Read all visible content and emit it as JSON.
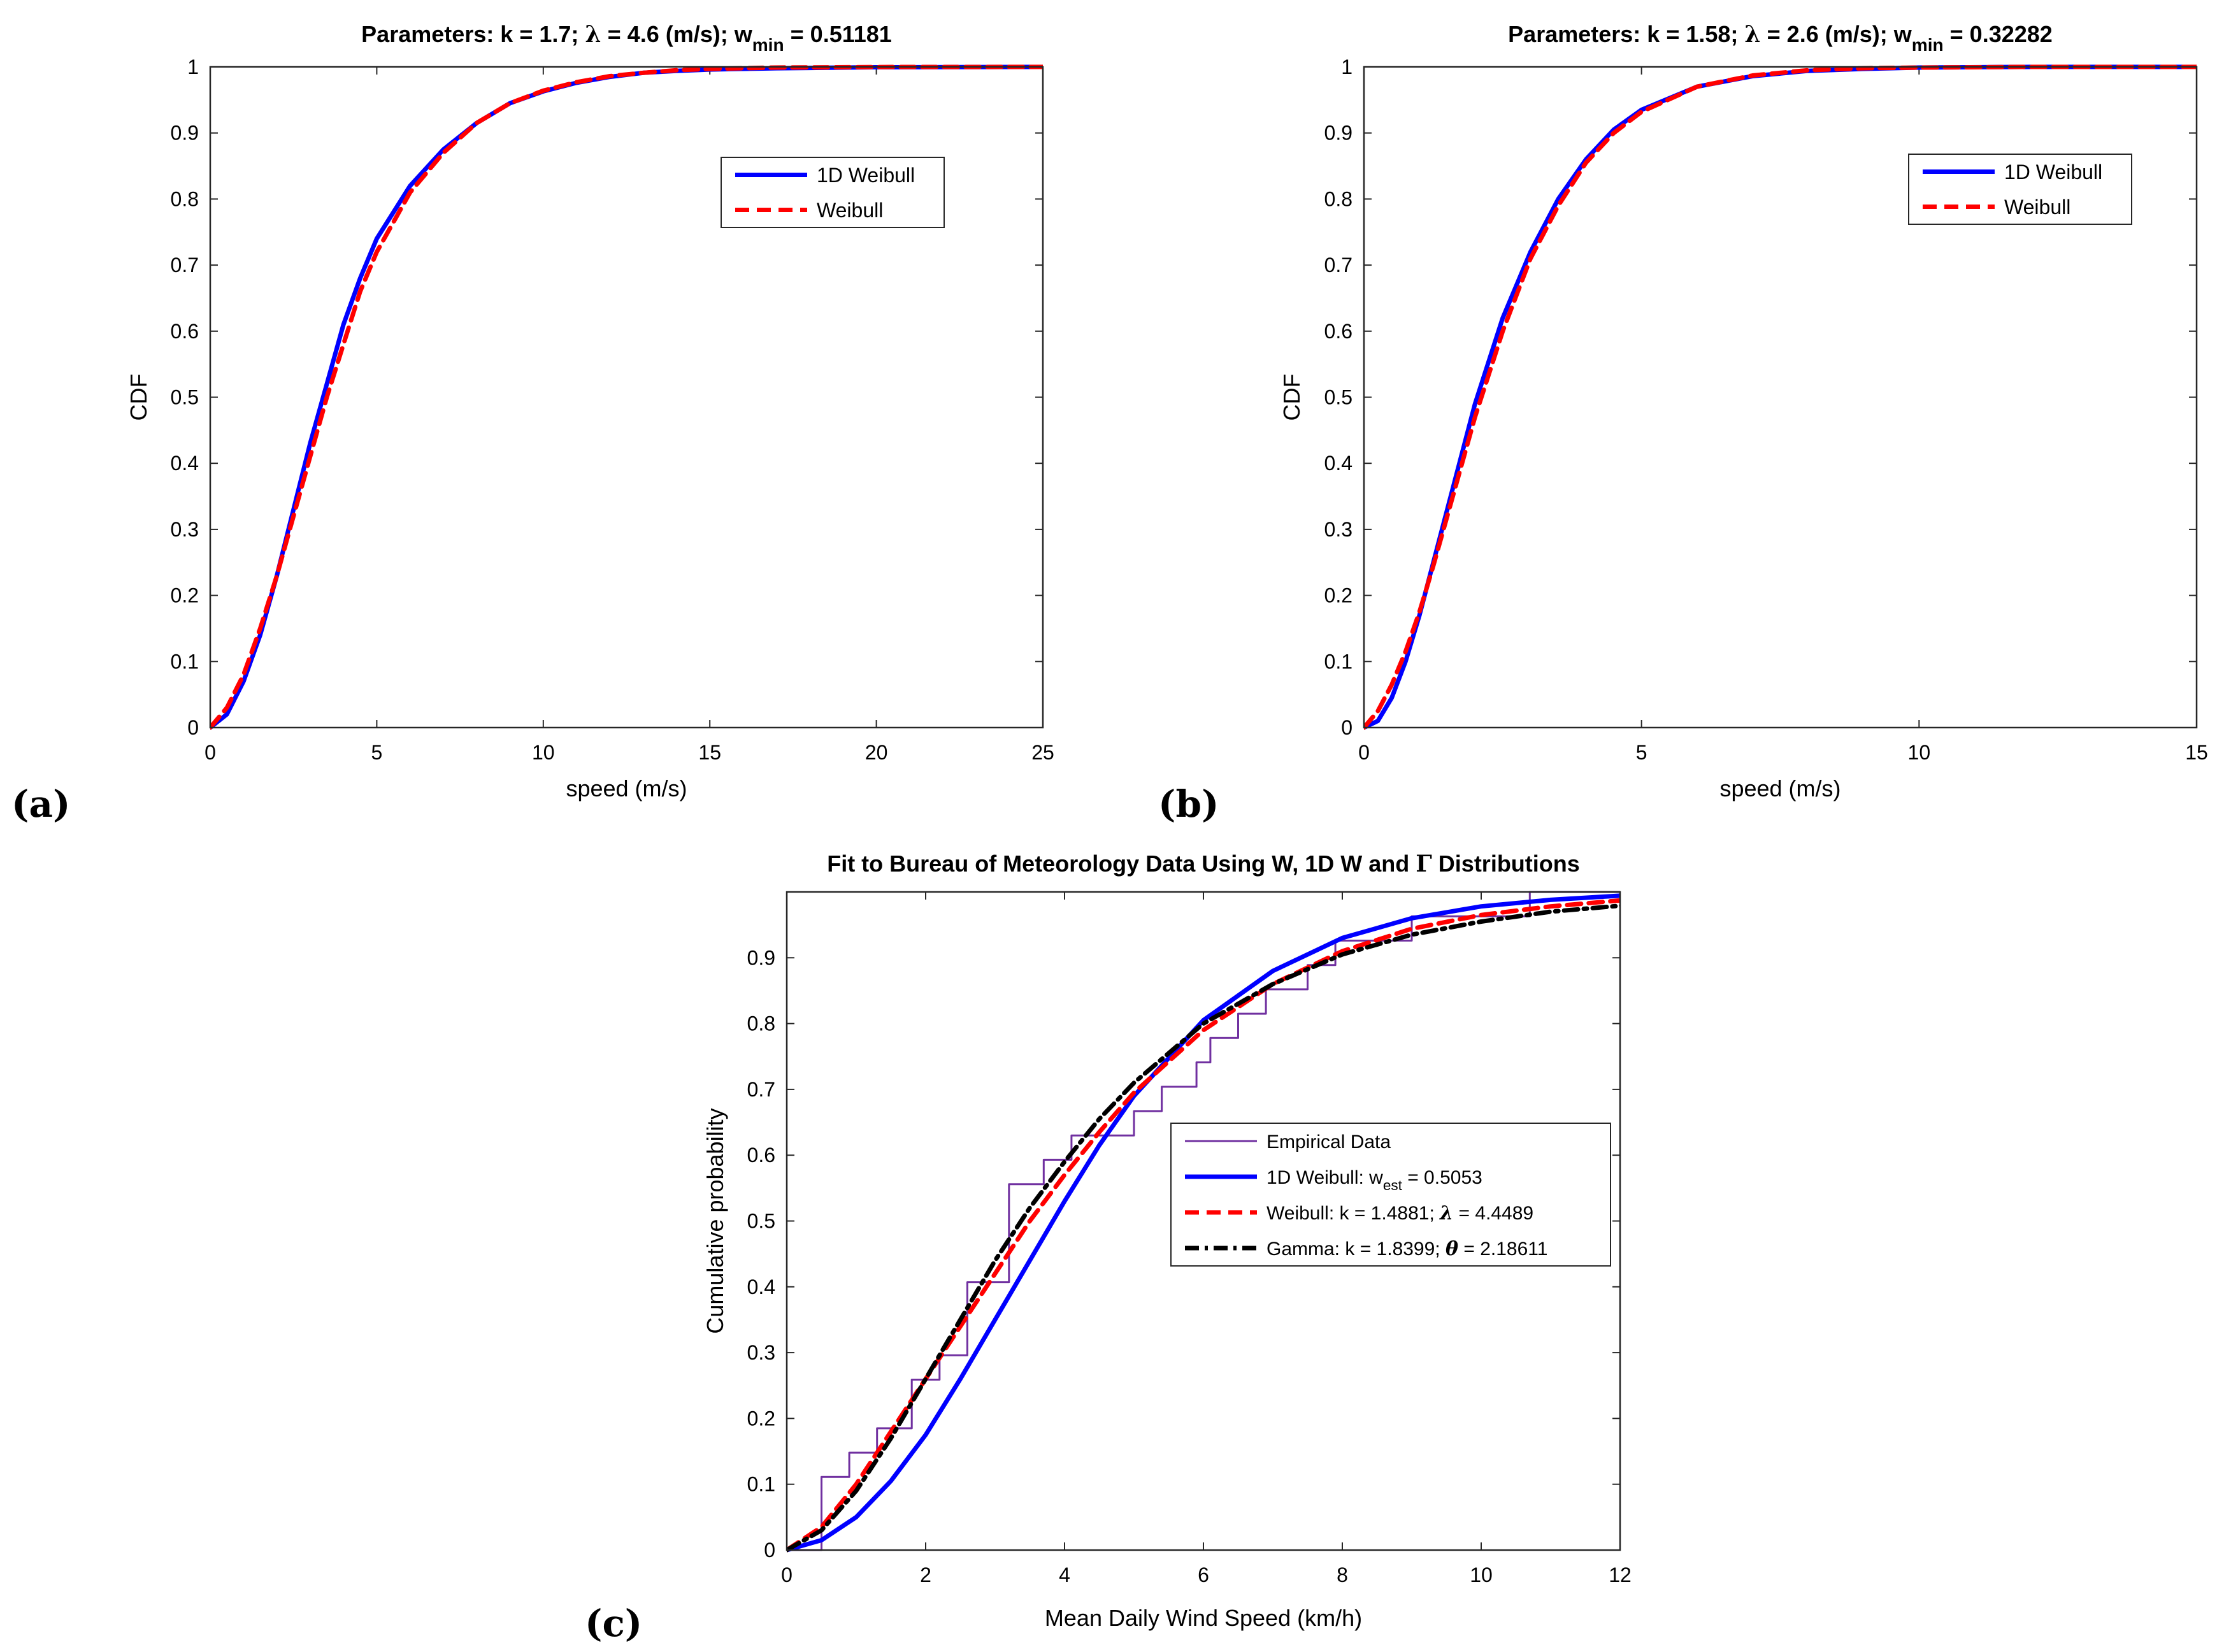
{
  "chart_data": [
    {
      "id": "a",
      "type": "line",
      "panel_label": "(a)",
      "title": {
        "prefix": "Parameters: k = 1.7; ",
        "lambda_symbol": "λ",
        "middle": " = 4.6 (m/s); w",
        "subscript": "min",
        "suffix": " = 0.51181"
      },
      "xlabel": "speed (m/s)",
      "ylabel": "CDF",
      "xlim": [
        0,
        25
      ],
      "ylim": [
        0,
        1
      ],
      "xticks": [
        "0",
        "5",
        "10",
        "15",
        "20",
        "25"
      ],
      "yticks": [
        "0",
        "0.1",
        "0.2",
        "0.3",
        "0.4",
        "0.5",
        "0.6",
        "0.7",
        "0.8",
        "0.9",
        "1"
      ],
      "legend_position": "upper-right",
      "series": [
        {
          "name": "1D Weibull",
          "color": "#0000ff",
          "style": "solid",
          "x": [
            0,
            0.5,
            1,
            1.5,
            2,
            2.5,
            3,
            3.5,
            4,
            4.5,
            5,
            6,
            7,
            8,
            9,
            10,
            11,
            12,
            13,
            14,
            15,
            17,
            20,
            25
          ],
          "y": [
            0,
            0.02,
            0.07,
            0.14,
            0.23,
            0.33,
            0.43,
            0.52,
            0.61,
            0.68,
            0.74,
            0.82,
            0.875,
            0.915,
            0.945,
            0.963,
            0.976,
            0.985,
            0.991,
            0.994,
            0.996,
            0.998,
            0.9995,
            1
          ]
        },
        {
          "name": "Weibull",
          "color": "#ff0000",
          "style": "dashed",
          "x": [
            0,
            0.5,
            1,
            1.5,
            2,
            2.5,
            3,
            3.5,
            4,
            4.5,
            5,
            6,
            7,
            8,
            9,
            10,
            11,
            12,
            13,
            14,
            15,
            17,
            20,
            25
          ],
          "y": [
            0,
            0.03,
            0.08,
            0.15,
            0.23,
            0.32,
            0.41,
            0.5,
            0.58,
            0.66,
            0.72,
            0.81,
            0.87,
            0.915,
            0.945,
            0.964,
            0.977,
            0.986,
            0.991,
            0.995,
            0.997,
            0.999,
            0.9998,
            1
          ]
        }
      ]
    },
    {
      "id": "b",
      "type": "line",
      "panel_label": "(b)",
      "title": {
        "prefix": "Parameters: k = 1.58; ",
        "lambda_symbol": "λ",
        "middle": " = 2.6 (m/s); w",
        "subscript": "min",
        "suffix": " = 0.32282"
      },
      "xlabel": "speed (m/s)",
      "ylabel": "CDF",
      "xlim": [
        0,
        15
      ],
      "ylim": [
        0,
        1
      ],
      "xticks": [
        "0",
        "5",
        "10",
        "15"
      ],
      "yticks": [
        "0",
        "0.1",
        "0.2",
        "0.3",
        "0.4",
        "0.5",
        "0.6",
        "0.7",
        "0.8",
        "0.9",
        "1"
      ],
      "legend_position": "upper-right",
      "series": [
        {
          "name": "1D Weibull",
          "color": "#0000ff",
          "style": "solid",
          "x": [
            0,
            0.25,
            0.5,
            0.75,
            1,
            1.25,
            1.5,
            1.75,
            2,
            2.5,
            3,
            3.5,
            4,
            4.5,
            5,
            6,
            7,
            8,
            9,
            10,
            12,
            15
          ],
          "y": [
            0,
            0.01,
            0.045,
            0.1,
            0.17,
            0.25,
            0.33,
            0.41,
            0.49,
            0.62,
            0.72,
            0.8,
            0.86,
            0.905,
            0.935,
            0.97,
            0.986,
            0.994,
            0.997,
            0.999,
            1,
            1
          ]
        },
        {
          "name": "Weibull",
          "color": "#ff0000",
          "style": "dashed",
          "x": [
            0,
            0.25,
            0.5,
            0.75,
            1,
            1.25,
            1.5,
            1.75,
            2,
            2.5,
            3,
            3.5,
            4,
            4.5,
            5,
            6,
            7,
            8,
            9,
            10,
            12,
            15
          ],
          "y": [
            0,
            0.025,
            0.065,
            0.115,
            0.175,
            0.245,
            0.32,
            0.395,
            0.47,
            0.6,
            0.71,
            0.79,
            0.855,
            0.9,
            0.932,
            0.97,
            0.987,
            0.995,
            0.998,
            0.999,
            1,
            1
          ]
        }
      ]
    },
    {
      "id": "c",
      "type": "line",
      "panel_label": "(c)",
      "title": {
        "text": "Fit to Bureau of Meteorology Data Using W, 1D W and ",
        "gamma_symbol": "Γ",
        "suffix": " Distributions"
      },
      "xlabel": "Mean Daily Wind Speed (km/h)",
      "ylabel": "Cumulative probability",
      "xlim": [
        0,
        12
      ],
      "ylim": [
        0,
        1
      ],
      "xticks": [
        "0",
        "2",
        "4",
        "6",
        "8",
        "10",
        "12"
      ],
      "yticks": [
        "0",
        "0.1",
        "0.2",
        "0.3",
        "0.4",
        "0.5",
        "0.6",
        "0.7",
        "0.8",
        "0.9"
      ],
      "legend_position": "lower-right",
      "series": [
        {
          "name": "Empirical Data",
          "color": "#7030a0",
          "style": "stairs",
          "x": [
            0,
            0.5,
            0.5,
            0.9,
            0.9,
            1.3,
            1.3,
            1.8,
            1.8,
            2.2,
            2.2,
            2.6,
            2.6,
            3.2,
            3.2,
            3.7,
            3.7,
            4.1,
            4.1,
            5.0,
            5.0,
            5.4,
            5.4,
            5.9,
            5.9,
            6.1,
            6.1,
            6.5,
            6.5,
            6.9,
            6.9,
            7.5,
            7.5,
            7.9,
            7.9,
            9.0,
            9.0,
            10.7,
            10.7,
            12.1
          ],
          "y": [
            0,
            0,
            0.111,
            0.111,
            0.148,
            0.148,
            0.185,
            0.185,
            0.259,
            0.259,
            0.296,
            0.296,
            0.407,
            0.407,
            0.556,
            0.556,
            0.593,
            0.593,
            0.63,
            0.63,
            0.667,
            0.667,
            0.704,
            0.704,
            0.741,
            0.741,
            0.778,
            0.778,
            0.815,
            0.815,
            0.852,
            0.852,
            0.889,
            0.889,
            0.926,
            0.926,
            0.963,
            0.963,
            1.0,
            1.0
          ]
        },
        {
          "name": "1D Weibull: w",
          "name_subscript": "est",
          "name_suffix": " = 0.5053",
          "color": "#0000ff",
          "style": "solid",
          "x": [
            0,
            0.5,
            1,
            1.5,
            2,
            2.5,
            3,
            3.5,
            4,
            4.5,
            5,
            6,
            7,
            8,
            9,
            10,
            11,
            12.1
          ],
          "y": [
            0,
            0.015,
            0.05,
            0.105,
            0.175,
            0.26,
            0.35,
            0.44,
            0.53,
            0.615,
            0.69,
            0.805,
            0.88,
            0.93,
            0.96,
            0.978,
            0.988,
            0.995
          ]
        },
        {
          "name": "Weibull: k = 1.4881; ",
          "name_symbol": "λ",
          "name_suffix": " = 4.4489",
          "color": "#ff0000",
          "style": "dashed",
          "x": [
            0,
            0.5,
            1,
            1.5,
            2,
            2.5,
            3,
            3.5,
            4,
            4.5,
            5,
            6,
            7,
            8,
            9,
            10,
            11,
            12.1
          ],
          "y": [
            0,
            0.035,
            0.1,
            0.18,
            0.26,
            0.34,
            0.42,
            0.5,
            0.57,
            0.635,
            0.695,
            0.79,
            0.86,
            0.91,
            0.944,
            0.965,
            0.978,
            0.988
          ]
        },
        {
          "name": "Gamma: k = 1.8399; ",
          "name_symbol": "θ",
          "name_suffix": " = 2.18611",
          "color": "#000000",
          "style": "dashdot",
          "x": [
            0,
            0.5,
            1,
            1.5,
            2,
            2.5,
            3,
            3.5,
            4,
            4.5,
            5,
            6,
            7,
            8,
            9,
            10,
            11,
            12.1
          ],
          "y": [
            0,
            0.03,
            0.09,
            0.17,
            0.26,
            0.35,
            0.44,
            0.52,
            0.59,
            0.655,
            0.71,
            0.8,
            0.86,
            0.905,
            0.935,
            0.955,
            0.97,
            0.98
          ]
        }
      ]
    }
  ]
}
